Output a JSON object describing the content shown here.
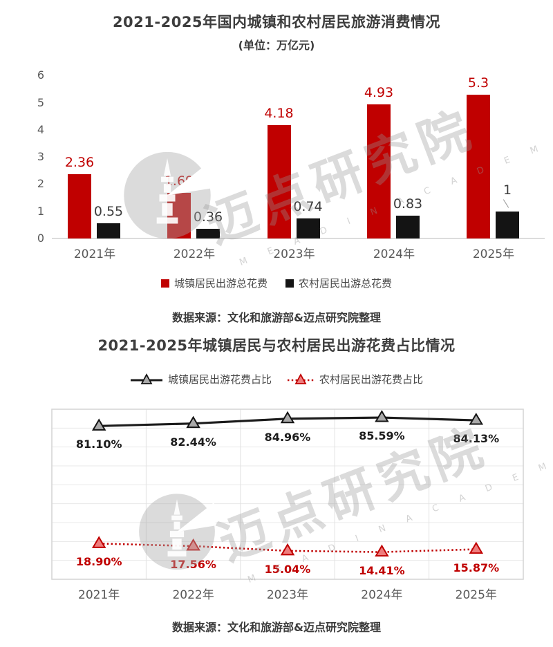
{
  "watermark": {
    "text": "迈点研究院",
    "subtext": "M E A D I N   A C A D E M Y"
  },
  "chart_data": [
    {
      "type": "bar",
      "title": "2021-2025年国内城镇和农村居民旅游消费情况",
      "subtitle": "(单位：万亿元)",
      "source": "数据来源：文化和旅游部&迈点研究院整理",
      "categories": [
        "2021年",
        "2022年",
        "2023年",
        "2024年",
        "2025年"
      ],
      "ylim": [
        0,
        6
      ],
      "yticks": [
        0,
        1,
        2,
        3,
        4,
        5,
        6
      ],
      "grid": false,
      "legend_position": "bottom",
      "series": [
        {
          "name": "城镇居民出游总花费",
          "color": "#c00000",
          "label_color": "#c00000",
          "values": [
            2.36,
            1.69,
            4.18,
            4.93,
            5.3
          ],
          "labels": [
            "2.36",
            "1.69",
            "4.18",
            "4.93",
            "5.3"
          ]
        },
        {
          "name": "农村居民出游总花费",
          "color": "#141414",
          "label_color": "#3d3d3d",
          "values": [
            0.55,
            0.36,
            0.74,
            0.83,
            1
          ],
          "labels": [
            "0.55",
            "0.36",
            "0.74",
            "0.83",
            "1"
          ]
        }
      ]
    },
    {
      "type": "line",
      "title": "2021-2025年城镇居民与农村居民出游花费占比情况",
      "source": "数据来源：文化和旅游部&迈点研究院整理",
      "categories": [
        "2021年",
        "2022年",
        "2023年",
        "2024年",
        "2025年"
      ],
      "ylim": [
        0,
        90
      ],
      "grid": true,
      "legend_position": "top",
      "series": [
        {
          "name": "城镇居民出游花费占比",
          "color": "#1b1b1b",
          "marker_fill": "#a9a9a9",
          "line_style": "solid",
          "values": [
            81.1,
            82.44,
            84.96,
            85.59,
            84.13
          ],
          "labels": [
            "81.10%",
            "82.44%",
            "84.96%",
            "85.59%",
            "84.13%"
          ]
        },
        {
          "name": "农村居民出游花费占比",
          "color": "#c00000",
          "marker_fill": "#ee7d7d",
          "line_style": "dotted",
          "values": [
            18.9,
            17.56,
            15.04,
            14.41,
            15.87
          ],
          "labels": [
            "18.90%",
            "17.56%",
            "15.04%",
            "14.41%",
            "15.87%"
          ]
        }
      ]
    }
  ]
}
